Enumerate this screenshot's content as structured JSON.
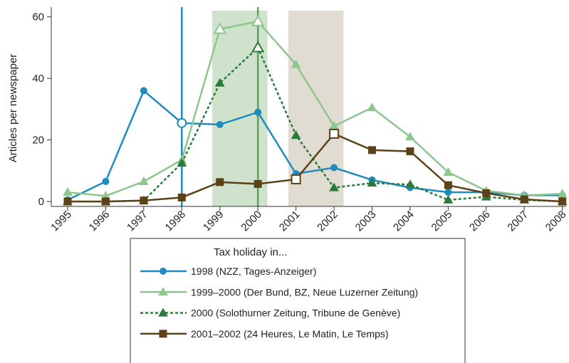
{
  "chart_data": {
    "type": "line",
    "y_label": "Articles per newspaper",
    "x": [
      1995,
      1996,
      1997,
      1998,
      1999,
      2000,
      2001,
      2002,
      2003,
      2004,
      2005,
      2006,
      2007,
      2008
    ],
    "xlim": [
      1994.57,
      2008.1
    ],
    "xticks": [
      1995,
      1996,
      1997,
      1998,
      1999,
      2000,
      2001,
      2002,
      2003,
      2004,
      2005,
      2006,
      2007,
      2008
    ],
    "ylim": [
      -1.6,
      62
    ],
    "yticks": [
      0,
      20,
      40,
      60
    ],
    "bands": [
      {
        "from": 1998.8,
        "to": 2000.25,
        "color": "#cfe3cc"
      },
      {
        "from": 2000.8,
        "to": 2002.25,
        "color": "#e1dcd2"
      }
    ],
    "vlines": [
      {
        "x": 1998,
        "color": "#1f8bbf"
      },
      {
        "x": 2000,
        "color": "#5aa05a"
      }
    ],
    "legend_title": "Tax holiday in...",
    "series": [
      {
        "name": "1998 (NZZ, Tages-Anzeiger)",
        "color": "#1f8bbf",
        "marker": "circle",
        "dash": false,
        "hollow": [
          3
        ],
        "values": [
          0.5,
          6.5,
          36,
          25.5,
          25,
          29,
          9,
          11,
          7,
          4.5,
          3,
          3,
          2,
          2
        ]
      },
      {
        "name": "1999–2000 (Der Bund, BZ, Neue Luzerner Zeitung)",
        "color": "#8fc68f",
        "marker": "triangle",
        "dash": false,
        "hollow": [
          4,
          5
        ],
        "values": [
          3,
          1.8,
          6.5,
          13.5,
          56,
          58.5,
          44.5,
          24.5,
          30.5,
          21,
          9.5,
          3.5,
          2,
          2.5
        ]
      },
      {
        "name": "2000 (Solothurner Zeitung, Tribune de Genève)",
        "color": "#2a7a3a",
        "marker": "triangle",
        "dash": true,
        "hollow": [
          5
        ],
        "values": [
          0,
          0,
          0.3,
          12.5,
          38.5,
          50,
          21.5,
          4.5,
          6,
          5.5,
          0.5,
          1.5,
          0.5,
          0
        ]
      },
      {
        "name": "2001–2002 (24 Heures, Le Matin, Le Temps)",
        "color": "#5c4218",
        "marker": "square",
        "dash": false,
        "hollow": [
          6,
          7
        ],
        "values": [
          0,
          0,
          0.3,
          1.3,
          6.3,
          5.7,
          7.2,
          22,
          16.7,
          16.3,
          5.3,
          2.7,
          0.7,
          0
        ]
      }
    ]
  }
}
